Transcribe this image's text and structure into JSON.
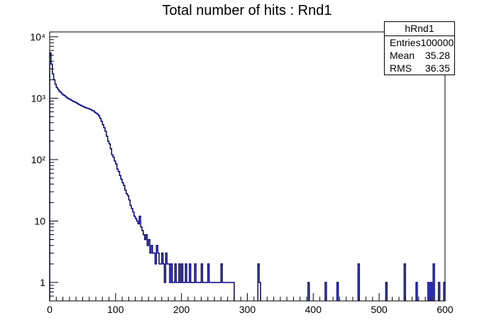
{
  "title": "Total number of hits : Rnd1",
  "stats_box": {
    "name": "hRnd1",
    "rows": [
      {
        "label": "Entries",
        "value": "100000"
      },
      {
        "label": "Mean",
        "value": "35.28"
      },
      {
        "label": "RMS",
        "value": "36.35"
      }
    ]
  },
  "chart_data": {
    "type": "histogram",
    "title": "Total number of hits : Rnd1",
    "xlim": [
      0,
      600
    ],
    "ylim": [
      0.5,
      12000
    ],
    "yscale": "log",
    "x_ticks": [
      0,
      100,
      200,
      300,
      400,
      500,
      600
    ],
    "x_tick_labels": [
      "0",
      "100",
      "200",
      "300",
      "400",
      "500",
      "600"
    ],
    "y_ticks": [
      1,
      10,
      100,
      1000,
      10000
    ],
    "y_tick_labels": [
      "1",
      "10",
      "10²",
      "10³",
      "10⁴"
    ],
    "line_color": "#000080",
    "bin_width": 2,
    "series": [
      {
        "x": [
          1,
          3,
          5,
          7,
          9,
          11,
          13,
          15,
          17,
          19,
          21,
          23,
          25,
          27,
          29,
          31,
          33,
          35,
          37,
          39,
          41,
          43,
          45,
          47,
          49,
          51,
          53,
          55,
          57,
          59,
          61,
          63,
          65,
          67,
          69,
          71,
          73,
          75,
          77,
          79,
          81,
          83,
          85,
          87,
          89,
          91,
          93,
          95,
          97,
          99,
          101,
          103,
          105,
          107,
          109,
          111,
          113,
          115,
          117,
          119,
          121,
          123,
          125,
          127,
          129,
          131,
          133,
          135,
          137,
          139,
          141,
          143,
          145,
          147,
          149,
          151,
          153,
          155,
          157,
          159,
          161,
          163,
          165,
          167,
          169,
          171,
          173,
          175,
          177,
          179,
          181,
          183,
          185,
          187,
          189,
          191,
          193,
          195,
          197,
          199,
          201,
          203,
          205,
          207,
          209,
          211,
          213,
          215,
          217,
          219,
          221,
          223,
          225,
          227,
          229,
          231,
          233,
          235,
          237,
          239,
          241,
          243,
          245,
          247,
          249,
          251,
          253,
          255,
          257,
          259,
          261,
          263,
          265,
          267,
          269,
          271,
          273,
          275,
          277,
          279,
          317,
          319,
          393,
          419,
          437,
          469,
          511,
          539,
          557,
          575,
          579,
          583,
          591,
          599
        ],
        "y": [
          5500,
          3600,
          2500,
          2000,
          1700,
          1500,
          1400,
          1300,
          1250,
          1180,
          1130,
          1100,
          1050,
          1010,
          980,
          960,
          930,
          900,
          880,
          860,
          840,
          810,
          790,
          770,
          750,
          735,
          715,
          700,
          690,
          680,
          665,
          650,
          630,
          620,
          590,
          570,
          550,
          520,
          470,
          420,
          370,
          330,
          290,
          240,
          200,
          180,
          150,
          120,
          110,
          95,
          85,
          70,
          64,
          55,
          48,
          42,
          38,
          32,
          28,
          26,
          22,
          18,
          16,
          14,
          12,
          11,
          10,
          9,
          12,
          8,
          7,
          6,
          5,
          6,
          4,
          5,
          3,
          4,
          3,
          3,
          2,
          4,
          3,
          2,
          2,
          3,
          2,
          1,
          3,
          2,
          2,
          1,
          2,
          1,
          1,
          2,
          1,
          1,
          2,
          1,
          2,
          1,
          1,
          2,
          1,
          1,
          2,
          1,
          1,
          1,
          2,
          1,
          1,
          1,
          1,
          2,
          1,
          1,
          1,
          1,
          2,
          1,
          1,
          1,
          1,
          1,
          1,
          1,
          1,
          1,
          2,
          1,
          1,
          1,
          1,
          1,
          1,
          1,
          1,
          1,
          2,
          1,
          1,
          1,
          1,
          2,
          1,
          2,
          1,
          1,
          1,
          2,
          1,
          1
        ]
      }
    ]
  }
}
